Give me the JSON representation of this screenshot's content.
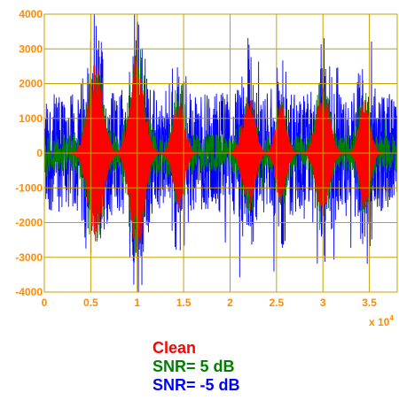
{
  "chart_data": {
    "type": "line",
    "title": "",
    "xlabel": "",
    "ylabel": "",
    "x_multiplier": {
      "base": "x 10",
      "exponent": "4"
    },
    "xlim": [
      0,
      3.8
    ],
    "ylim": [
      -4000,
      4000
    ],
    "x_ticks": [
      0,
      0.5,
      1,
      1.5,
      2,
      2.5,
      3,
      3.5
    ],
    "x_tick_labels": [
      "0",
      "0.5",
      "1",
      "1.5",
      "2",
      "2.5",
      "3",
      "3.5"
    ],
    "y_ticks": [
      4000,
      3000,
      2000,
      1000,
      0,
      -1000,
      -2000,
      -3000,
      -4000
    ],
    "y_tick_labels": [
      "4000",
      "3000",
      "2000",
      "1000",
      "0",
      "-1000",
      "-2000",
      "-3000",
      "-4000"
    ],
    "grid": true,
    "legend_position": "bottom-center",
    "bursts": [
      {
        "center": 0.55,
        "width": 0.17,
        "peak": 2600
      },
      {
        "center": 1.0,
        "width": 0.16,
        "peak": 2900
      },
      {
        "center": 1.45,
        "width": 0.13,
        "peak": 1600
      },
      {
        "center": 2.2,
        "width": 0.14,
        "peak": 1700
      },
      {
        "center": 2.55,
        "width": 0.12,
        "peak": 1500
      },
      {
        "center": 3.0,
        "width": 0.15,
        "peak": 1900
      },
      {
        "center": 3.45,
        "width": 0.12,
        "peak": 1700
      }
    ],
    "series": [
      {
        "name": "Clean",
        "color": "#ff0000",
        "noise_amplitude": 0
      },
      {
        "name": "SNR= 5 dB",
        "color": "#008000",
        "noise_amplitude": 550
      },
      {
        "name": "SNR= -5 dB",
        "color": "#0000ff",
        "noise_amplitude": 1700
      }
    ]
  },
  "colors": {
    "axis": "#c8a000",
    "grid": "#c8a000",
    "tick_label": "#ff8c00"
  }
}
